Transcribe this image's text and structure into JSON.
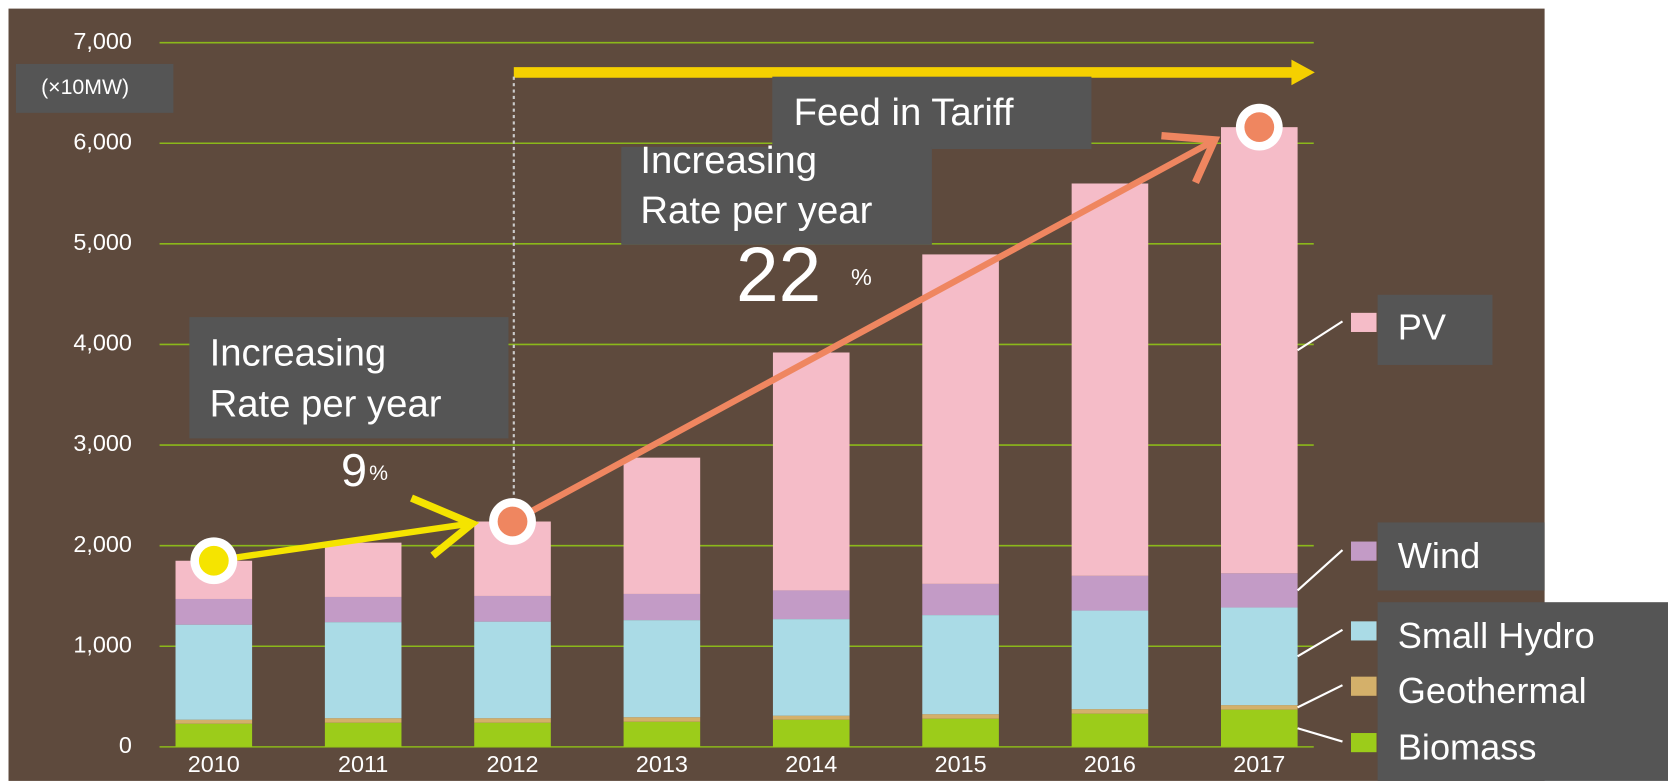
{
  "chart_data": {
    "type": "stacked_bar",
    "unit_label": "(×10MW)",
    "categories": [
      "2010",
      "2011",
      "2012",
      "2013",
      "2014",
      "2015",
      "2016",
      "2017"
    ],
    "series": [
      {
        "name": "Biomass",
        "color": "#9ccc1a",
        "values": [
          230,
          240,
          240,
          250,
          270,
          280,
          330,
          370
        ]
      },
      {
        "name": "Geothermal",
        "color": "#d4b06a",
        "values": [
          40,
          45,
          45,
          45,
          40,
          45,
          45,
          45
        ]
      },
      {
        "name": "Small Hydro",
        "color": "#aadbe6",
        "values": [
          945,
          955,
          960,
          965,
          960,
          985,
          980,
          970
        ]
      },
      {
        "name": "Wind",
        "color": "#c39bc6",
        "values": [
          255,
          250,
          255,
          260,
          285,
          310,
          345,
          340
        ]
      },
      {
        "name": "PV",
        "color": "#f5bcc8",
        "values": [
          380,
          540,
          740,
          1355,
          2365,
          3275,
          3900,
          4435
        ]
      }
    ],
    "ylim": [
      0,
      7000
    ],
    "yticks": [
      0,
      {
        "value": 1000,
        "label": "1,000"
      },
      {
        "value": 2000,
        "label": "2,000"
      },
      {
        "value": 3000,
        "label": "3,000"
      },
      {
        "value": 4000,
        "label": "4,000"
      },
      {
        "value": 5000,
        "label": "5,000"
      },
      {
        "value": 6000,
        "label": "6,000"
      },
      {
        "value": 7000,
        "label": "7,000"
      }
    ],
    "grid": true,
    "annotations": {
      "fit": "Feed in Tariff",
      "rate1": [
        "Increasing",
        "Rate per year"
      ],
      "pct1": {
        "number": "9",
        "unit": "%"
      },
      "rate2": [
        "Increasing",
        "Rate per year"
      ],
      "pct2": {
        "number": "22",
        "unit": "%"
      }
    }
  }
}
